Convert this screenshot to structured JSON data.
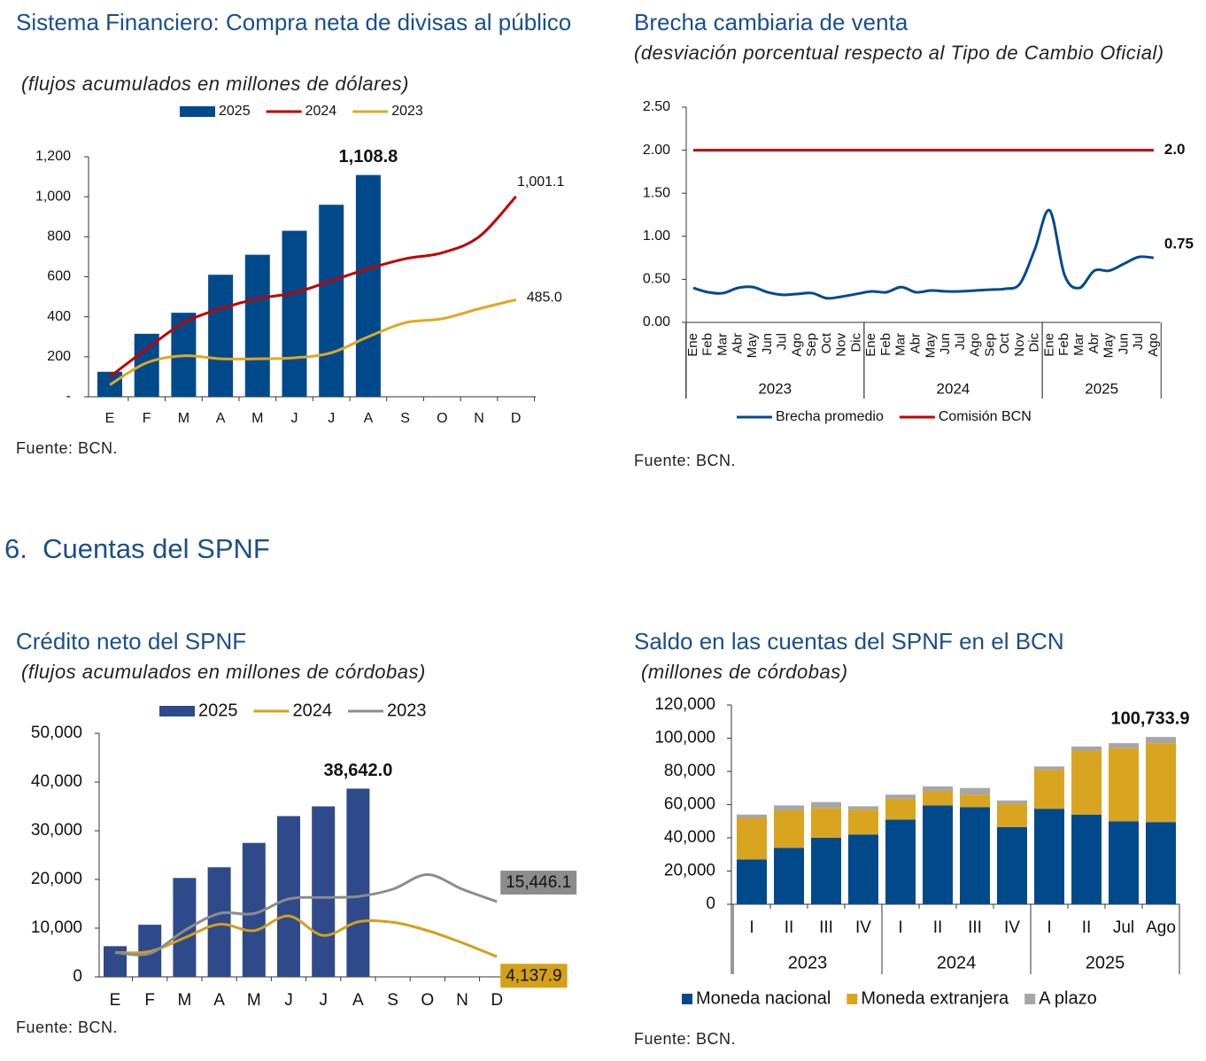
{
  "section": {
    "number": "6.",
    "title": "Cuentas del SPNF"
  },
  "chart_data": [
    {
      "type": "bar",
      "title": "Sistema Financiero: Compra neta de divisas al público",
      "subtitle": "(flujos acumulados en millones de dólares)",
      "source": "Fuente: BCN.",
      "categories": [
        "E",
        "F",
        "M",
        "A",
        "M",
        "J",
        "J",
        "A",
        "S",
        "O",
        "N",
        "D"
      ],
      "series": [
        {
          "name": "2025",
          "kind": "bar",
          "color": "#004a8c",
          "values": [
            125,
            315,
            420,
            610,
            710,
            830,
            960,
            1108.8,
            null,
            null,
            null,
            null
          ],
          "value_labels": [
            null,
            null,
            null,
            null,
            null,
            null,
            null,
            "1,108.8",
            null,
            null,
            null,
            null
          ]
        },
        {
          "name": "2024",
          "kind": "line",
          "color": "#c00000",
          "values": [
            100,
            240,
            370,
            440,
            490,
            520,
            580,
            640,
            690,
            720,
            800,
            1001.1
          ],
          "value_labels": [
            null,
            null,
            null,
            null,
            null,
            null,
            null,
            null,
            null,
            null,
            null,
            "1,001.1"
          ]
        },
        {
          "name": "2023",
          "kind": "line",
          "color": "#e0a820",
          "values": [
            60,
            170,
            205,
            190,
            190,
            195,
            220,
            300,
            370,
            390,
            440,
            485.0
          ],
          "value_labels": [
            null,
            null,
            null,
            null,
            null,
            null,
            null,
            null,
            null,
            null,
            null,
            "485.0"
          ]
        }
      ],
      "ylim": [
        0,
        1200
      ],
      "yticks": [
        {
          "value": 0,
          "label": "-"
        },
        200,
        400,
        600,
        800,
        {
          "value": 1000,
          "label": "1,000"
        },
        {
          "value": 1200,
          "label": "1,200"
        }
      ],
      "legend": "top"
    },
    {
      "type": "line",
      "title": "Brecha cambiaria de venta",
      "subtitle": "(desviación porcentual respecto al Tipo de Cambio Oficial)",
      "source": "Fuente: BCN.",
      "groups": [
        {
          "label": "2023",
          "categories": [
            "Ene",
            "Feb",
            "Mar",
            "Abr",
            "May",
            "Jun",
            "Jul",
            "Ago",
            "Sep",
            "Oct",
            "Nov",
            "Dic"
          ]
        },
        {
          "label": "2024",
          "categories": [
            "Ene",
            "Feb",
            "Mar",
            "Abr",
            "May",
            "Jun",
            "Jul",
            "Ago",
            "Sep",
            "Oct",
            "Nov",
            "Dic"
          ]
        },
        {
          "label": "2025",
          "categories": [
            "Ene",
            "Feb",
            "Mar",
            "Abr",
            "May",
            "Jun",
            "Jul",
            "Ago"
          ]
        }
      ],
      "series": [
        {
          "name": "Brecha promedio",
          "kind": "line",
          "color": "#004a8c",
          "values": [
            0.4,
            0.35,
            0.34,
            0.4,
            0.41,
            0.35,
            0.32,
            0.33,
            0.34,
            0.28,
            0.3,
            0.33,
            0.36,
            0.35,
            0.41,
            0.35,
            0.37,
            0.36,
            0.36,
            0.37,
            0.38,
            0.39,
            0.45,
            0.85,
            1.3,
            0.55,
            0.4,
            0.6,
            0.6,
            0.68,
            0.76,
            0.75
          ],
          "value_labels": [
            null,
            null,
            null,
            null,
            null,
            null,
            null,
            null,
            null,
            null,
            null,
            null,
            null,
            null,
            null,
            null,
            null,
            null,
            null,
            null,
            null,
            null,
            null,
            null,
            null,
            null,
            null,
            null,
            null,
            null,
            null,
            "0.75"
          ]
        },
        {
          "name": "Comisión BCN",
          "kind": "line",
          "color": "#c00000",
          "values": [
            2.0,
            2.0,
            2.0,
            2.0,
            2.0,
            2.0,
            2.0,
            2.0,
            2.0,
            2.0,
            2.0,
            2.0,
            2.0,
            2.0,
            2.0,
            2.0,
            2.0,
            2.0,
            2.0,
            2.0,
            2.0,
            2.0,
            2.0,
            2.0,
            2.0,
            2.0,
            2.0,
            2.0,
            2.0,
            2.0,
            2.0,
            2.0
          ],
          "value_labels": [
            null,
            null,
            null,
            null,
            null,
            null,
            null,
            null,
            null,
            null,
            null,
            null,
            null,
            null,
            null,
            null,
            null,
            null,
            null,
            null,
            null,
            null,
            null,
            null,
            null,
            null,
            null,
            null,
            null,
            null,
            null,
            "2.0"
          ]
        }
      ],
      "ylim": [
        0,
        2.5
      ],
      "yticks": [
        {
          "value": 0,
          "label": "0.00"
        },
        {
          "value": 0.5,
          "label": "0.50"
        },
        {
          "value": 1,
          "label": "1.00"
        },
        {
          "value": 1.5,
          "label": "1.50"
        },
        {
          "value": 2,
          "label": "2.00"
        },
        {
          "value": 2.5,
          "label": "2.50"
        }
      ],
      "legend": "bottom"
    },
    {
      "type": "bar",
      "title": "Crédito neto del SPNF",
      "subtitle": "(flujos acumulados en millones de córdobas)",
      "source": "Fuente: BCN.",
      "categories": [
        "E",
        "F",
        "M",
        "A",
        "M",
        "J",
        "J",
        "A",
        "S",
        "O",
        "N",
        "D"
      ],
      "series": [
        {
          "name": "2025",
          "kind": "bar",
          "color": "#2e4a8a",
          "values": [
            6300,
            10700,
            20300,
            22500,
            27500,
            33000,
            35000,
            38642.0,
            null,
            null,
            null,
            null
          ],
          "value_labels": [
            null,
            null,
            null,
            null,
            null,
            null,
            null,
            "38,642.0",
            null,
            null,
            null,
            null
          ]
        },
        {
          "name": "2024",
          "kind": "line",
          "color": "#d4a017",
          "label_boxed": true,
          "values": [
            5000,
            5200,
            8000,
            10800,
            9500,
            12500,
            8500,
            11300,
            11200,
            9500,
            7000,
            4137.9
          ],
          "value_labels": [
            null,
            null,
            null,
            null,
            null,
            null,
            null,
            null,
            null,
            null,
            null,
            "4,137.9"
          ]
        },
        {
          "name": "2023",
          "kind": "line",
          "color": "#8c8c8c",
          "label_boxed": true,
          "values": [
            5000,
            4800,
            9500,
            13000,
            13000,
            16000,
            16300,
            16500,
            18000,
            21000,
            18000,
            15446.1
          ],
          "value_labels": [
            null,
            null,
            null,
            null,
            null,
            null,
            null,
            null,
            null,
            null,
            null,
            "15,446.1"
          ]
        }
      ],
      "ylim": [
        0,
        50000
      ],
      "yticks": [
        0,
        {
          "value": 10000,
          "label": "10,000"
        },
        {
          "value": 20000,
          "label": "20,000"
        },
        {
          "value": 30000,
          "label": "30,000"
        },
        {
          "value": 40000,
          "label": "40,000"
        },
        {
          "value": 50000,
          "label": "50,000"
        }
      ],
      "legend": "top"
    },
    {
      "type": "stacked_bar",
      "title": "Saldo en las cuentas del SPNF en el BCN",
      "subtitle": "(millones de córdobas)",
      "source": "Fuente: BCN.",
      "groups": [
        {
          "label": "2023",
          "categories": [
            "I",
            "II",
            "III",
            "IV"
          ]
        },
        {
          "label": "2024",
          "categories": [
            "I",
            "II",
            "III",
            "IV"
          ]
        },
        {
          "label": "2025",
          "categories": [
            "I",
            "II",
            "Jul",
            "Ago"
          ]
        }
      ],
      "series": [
        {
          "name": "Moneda nacional",
          "kind": "bar",
          "color": "#004a8c",
          "values": [
            27000,
            34000,
            40000,
            42000,
            51000,
            59500,
            58500,
            46500,
            57500,
            54000,
            50000,
            49500
          ]
        },
        {
          "name": "Moneda extranjera",
          "kind": "bar",
          "color": "#d9a520",
          "values": [
            25000,
            22500,
            18000,
            15000,
            12500,
            8500,
            7500,
            14000,
            23500,
            38500,
            44000,
            47500
          ]
        },
        {
          "name": "A plazo",
          "kind": "bar",
          "color": "#a6a6a6",
          "values": [
            2000,
            3000,
            3500,
            2000,
            2500,
            3000,
            4000,
            2000,
            2000,
            2500,
            3000,
            3733.9
          ]
        }
      ],
      "total_labels": [
        null,
        null,
        null,
        null,
        null,
        null,
        null,
        null,
        null,
        null,
        null,
        "100,733.9"
      ],
      "ylim": [
        0,
        120000
      ],
      "yticks": [
        0,
        {
          "value": 20000,
          "label": "20,000"
        },
        {
          "value": 40000,
          "label": "40,000"
        },
        {
          "value": 60000,
          "label": "60,000"
        },
        {
          "value": 80000,
          "label": "80,000"
        },
        {
          "value": 100000,
          "label": "100,000"
        },
        {
          "value": 120000,
          "label": "120,000"
        }
      ],
      "legend": "bottom"
    }
  ]
}
